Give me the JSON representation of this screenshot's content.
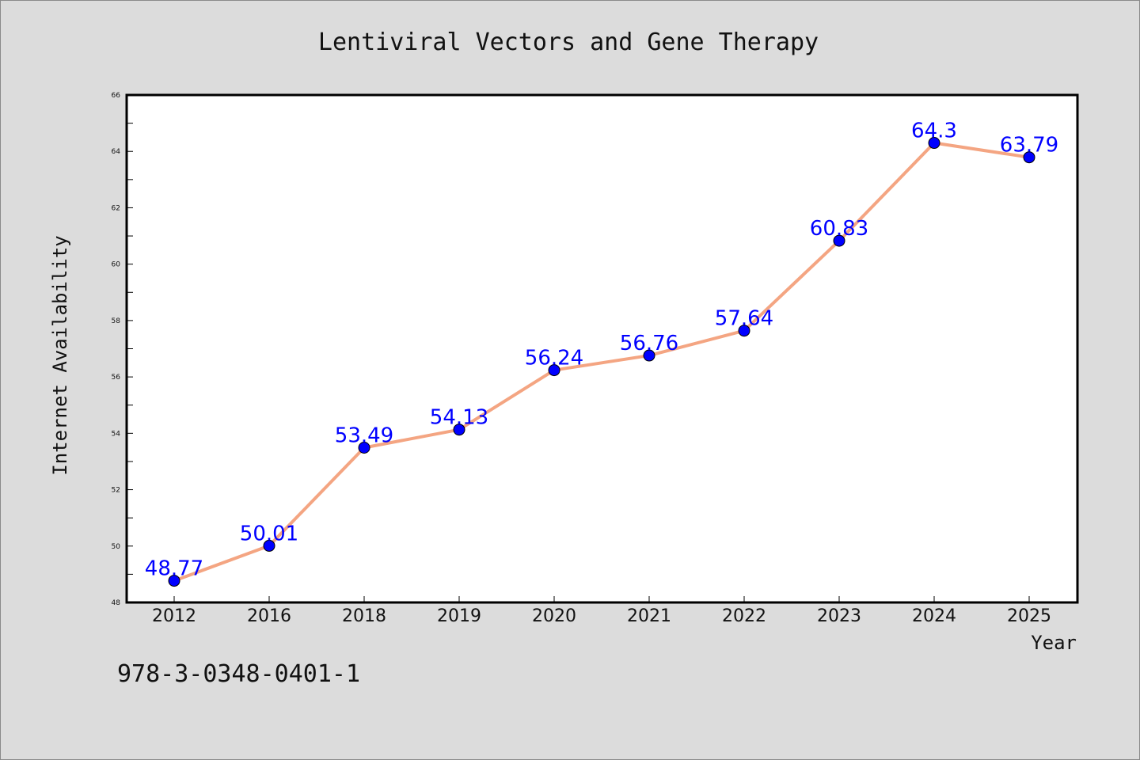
{
  "chart_data": {
    "type": "line",
    "title": "Lentiviral Vectors and Gene Therapy",
    "xlabel": "Year",
    "ylabel": "Internet Availability",
    "categories": [
      "2012",
      "2016",
      "2018",
      "2019",
      "2020",
      "2021",
      "2022",
      "2023",
      "2024",
      "2025"
    ],
    "series": [
      {
        "values": [
          48.77,
          50.01,
          53.49,
          54.13,
          56.24,
          56.76,
          57.64,
          60.83,
          64.3,
          63.79
        ],
        "labels": [
          "48.77",
          "50.01",
          "53.49",
          "54.13",
          "56.24",
          "56.76",
          "57.64",
          "60.83",
          "64.3",
          "63.79"
        ],
        "line_color": "#f4a582",
        "marker_color": "#0000ff",
        "label_color": "#0000ff"
      }
    ],
    "ylim": [
      48,
      66
    ],
    "yticks": [
      "48",
      "50",
      "52",
      "54",
      "56",
      "58",
      "60",
      "62",
      "64",
      "66"
    ],
    "grid": false,
    "legend": "none"
  },
  "footer": {
    "isbn": "978-3-0348-0401-1"
  },
  "colors": {
    "background": "#dcdcdc",
    "plot_background": "#ffffff"
  }
}
